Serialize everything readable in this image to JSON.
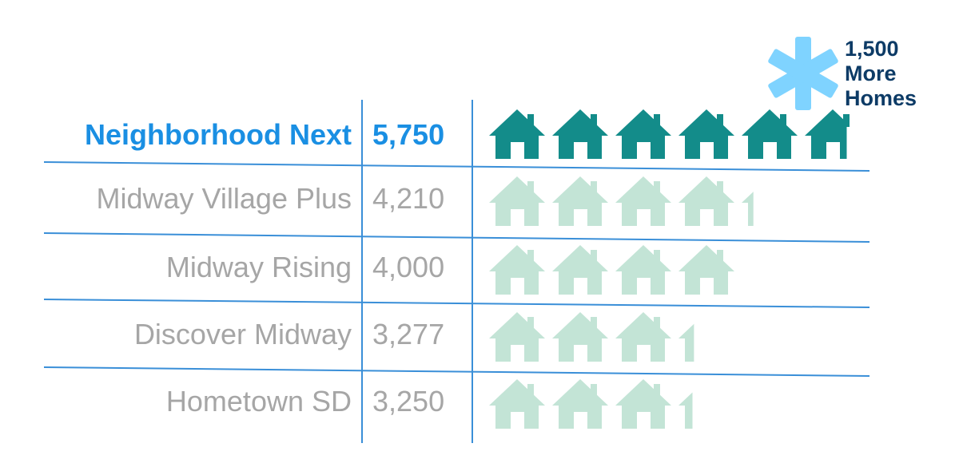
{
  "chart_data": {
    "type": "table",
    "units_per_icon": 1000,
    "columns": [
      "plan",
      "homes",
      "icons"
    ],
    "rows": [
      {
        "name": "Neighborhood Next",
        "value": 5750,
        "label": "5,750",
        "highlight": true
      },
      {
        "name": "Midway Village Plus",
        "value": 4210,
        "label": "4,210",
        "highlight": false
      },
      {
        "name": "Midway Rising",
        "value": 4000,
        "label": "4,000",
        "highlight": false
      },
      {
        "name": "Discover Midway",
        "value": 3277,
        "label": "3,277",
        "highlight": false
      },
      {
        "name": "Hometown SD",
        "value": 3250,
        "label": "3,250",
        "highlight": false
      }
    ],
    "annotation": "1,500\nMore\nHomes",
    "colors": {
      "highlight_text": "#1a8fe3",
      "normal_text": "#a6a6a6",
      "highlight_icon": "#138c8a",
      "normal_icon": "#c3e4d6",
      "rule": "#3a8fd8",
      "asterisk": "#7fd3ff",
      "annotation_text": "#0d3b66"
    }
  }
}
